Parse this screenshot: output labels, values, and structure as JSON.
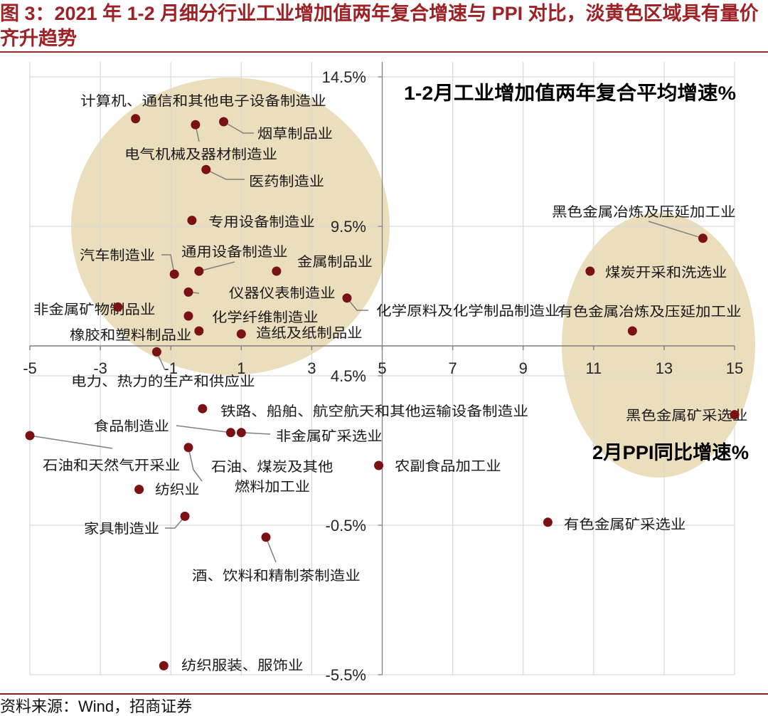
{
  "figure": {
    "title": "图 3：2021 年 1-2 月细分行业工业增加值两年复合增速与 PPI 对比，淡黄色区域具有量价齐升趋势",
    "source": "资料来源：Wind，招商证券"
  },
  "colors": {
    "title": "#9E2225",
    "rule_top": "#A52A2A",
    "rule_bottom": "#8B2323",
    "point": "#7A1114",
    "highlight": "#E9DAB5",
    "grid": "#D9D9D9",
    "axis": "#7F7F7F",
    "leader": "#808080"
  },
  "chart_data": {
    "type": "scatter",
    "xlabel": "2月PPI同比增速%",
    "ylabel": "1-2月工业增加值两年复合平均增速%",
    "xlim": [
      -5,
      15
    ],
    "ylim": [
      -5.5,
      15
    ],
    "x_axis_crosses_at": 5.5,
    "y_axis_crosses_at": 5,
    "grid": true,
    "x_ticks": [
      {
        "value": -5,
        "label": "-5"
      },
      {
        "value": -3,
        "label": "-3"
      },
      {
        "value": -1,
        "label": "-1"
      },
      {
        "value": 1,
        "label": "1"
      },
      {
        "value": 3,
        "label": "3"
      },
      {
        "value": 5,
        "label": "5"
      },
      {
        "value": 7,
        "label": "7"
      },
      {
        "value": 9,
        "label": "9"
      },
      {
        "value": 11,
        "label": "11"
      },
      {
        "value": 13,
        "label": "13"
      },
      {
        "value": 15,
        "label": "15"
      }
    ],
    "y_ticks": [
      {
        "value": 14.5,
        "label": "14.5%"
      },
      {
        "value": 9.5,
        "label": "9.5%"
      },
      {
        "value": 4.5,
        "label": "4.5%"
      },
      {
        "value": -0.5,
        "label": "-0.5%"
      },
      {
        "value": -5.5,
        "label": "-5.5%"
      }
    ],
    "points": [
      {
        "label": "计算机、通信和其他电子设备制造业",
        "x": -2.0,
        "y": 13.1
      },
      {
        "label": "烟草制品业",
        "x": 0.5,
        "y": 13.0
      },
      {
        "label": "电气机械及器材制造业",
        "x": -0.3,
        "y": 12.9
      },
      {
        "label": "医药制造业",
        "x": 0.0,
        "y": 11.4
      },
      {
        "label": "专用设备制造业",
        "x": -0.4,
        "y": 9.7
      },
      {
        "label": "汽车制造业",
        "x": -0.9,
        "y": 7.9
      },
      {
        "label": "通用设备制造业",
        "x": -0.2,
        "y": 8.0
      },
      {
        "label": "金属制品业",
        "x": 2.0,
        "y": 8.0
      },
      {
        "label": "仪器仪表制造业",
        "x": -0.5,
        "y": 7.3
      },
      {
        "label": "化学原料及化学制品制造业",
        "x": 4.0,
        "y": 7.1
      },
      {
        "label": "非金属矿物制品业",
        "x": -2.5,
        "y": 6.8
      },
      {
        "label": "化学纤维制造业",
        "x": -0.5,
        "y": 6.5
      },
      {
        "label": "橡胶和塑料制品业",
        "x": -0.2,
        "y": 6.0
      },
      {
        "label": "造纸及纸制品业",
        "x": 1.0,
        "y": 5.9
      },
      {
        "label": "电力、热力的生产和供应业",
        "x": -1.4,
        "y": 5.3
      },
      {
        "label": "黑色金属冶炼及压延加工业",
        "x": 14.1,
        "y": 9.1
      },
      {
        "label": "煤炭开采和洗选业",
        "x": 10.9,
        "y": 8.0
      },
      {
        "label": "有色金属冶炼及压延加工业",
        "x": 12.1,
        "y": 6.0
      },
      {
        "label": "黑色金属矿采选业",
        "x": 15.0,
        "y": 3.2
      },
      {
        "label": "铁路、船舶、航空航天和其他运输设备制造业",
        "x": -0.1,
        "y": 3.4
      },
      {
        "label": "食品制造业",
        "x": 0.7,
        "y": 2.6
      },
      {
        "label": "非金属矿采选业",
        "x": 1.0,
        "y": 2.6
      },
      {
        "label": "石油和天然气开采业",
        "x": -5.0,
        "y": 2.5
      },
      {
        "label": "石油、煤炭及其他燃料加工业",
        "x": -0.5,
        "y": 2.1
      },
      {
        "label": "农副食品加工业",
        "x": 4.9,
        "y": 1.5
      },
      {
        "label": "纺织业",
        "x": -1.9,
        "y": 0.7
      },
      {
        "label": "家具制造业",
        "x": -0.6,
        "y": -0.2
      },
      {
        "label": "有色金属矿采选业",
        "x": 9.7,
        "y": -0.4
      },
      {
        "label": "酒、饮料和精制茶制造业",
        "x": 1.7,
        "y": -0.9
      },
      {
        "label": "纺织服装、服饰业",
        "x": -1.2,
        "y": -5.2
      }
    ]
  }
}
